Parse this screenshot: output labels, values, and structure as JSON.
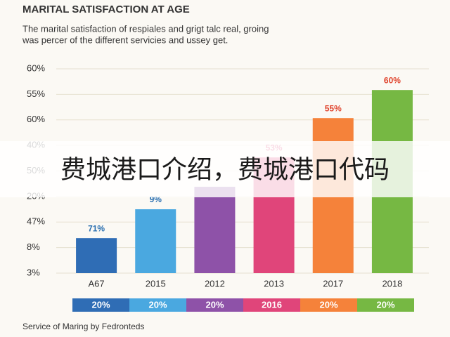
{
  "chart_data": {
    "type": "bar",
    "title": "MARITAL SATISFACTION AT AGE",
    "subtitle": [
      "The marital satisfaction of respiales and grigt talc real, groing",
      "was percer of the different servicies and ussey get."
    ],
    "categories": [
      "A67",
      "2015",
      "2012",
      "2013",
      "2017",
      "2018"
    ],
    "values": [
      1.37,
      2.5,
      3.38,
      4.53,
      6.07,
      7.17
    ],
    "value_labels": [
      "71%",
      "9%",
      null,
      "53%",
      "55%",
      "60%"
    ],
    "colors": [
      "#2f6db5",
      "#4aa8e0",
      "#8e52a8",
      "#e0457a",
      "#f5823a",
      "#76b843"
    ],
    "label_colors": [
      "#2a6fb0",
      "#2a6fb0",
      "#2a6fb0",
      "#e0457a",
      "#e0452e",
      "#e0452e"
    ],
    "ylim": [
      0,
      8
    ],
    "yticks": [
      {
        "value": 0,
        "label": "3%"
      },
      {
        "value": 1,
        "label": "8%"
      },
      {
        "value": 2,
        "label": "47%"
      },
      {
        "value": 3,
        "label": "20%"
      },
      {
        "value": 4,
        "label": "50%"
      },
      {
        "value": 5,
        "label": "40%"
      },
      {
        "value": 6,
        "label": "60%"
      },
      {
        "value": 7,
        "label": "55%"
      },
      {
        "value": 8,
        "label": "60%"
      }
    ],
    "grid": true,
    "box_labels": [
      "20%",
      "20%",
      "20%",
      "2016",
      "20%",
      "20%"
    ],
    "footer": "Service of Maring by Fedronteds",
    "overlay_text": "费城港口介绍，费城港口代码"
  }
}
